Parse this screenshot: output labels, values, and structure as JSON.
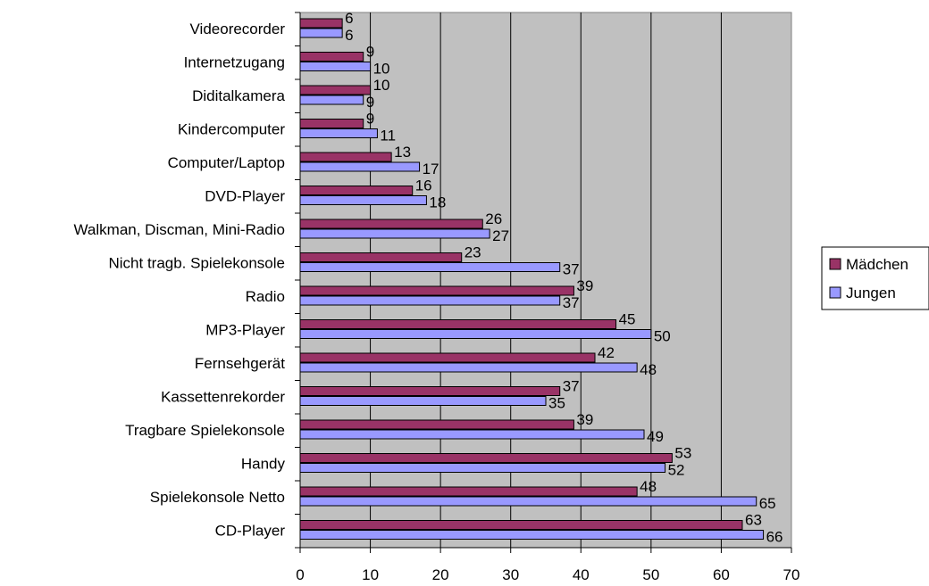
{
  "chart_data": {
    "type": "bar",
    "orientation": "horizontal",
    "categories": [
      "Videorecorder",
      "Internetzugang",
      "Diditalkamera",
      "Kindercomputer",
      "Computer/Laptop",
      "DVD-Player",
      "Walkman, Discman, Mini-Radio",
      "Nicht tragb. Spielekonsole",
      "Radio",
      "MP3-Player",
      "Fernsehgerät",
      "Kassettenrekorder",
      "Tragbare Spielekonsole",
      "Handy",
      "Spielekonsole Netto",
      "CD-Player"
    ],
    "series": [
      {
        "name": "Mädchen",
        "color": "#993366",
        "values": [
          6,
          9,
          10,
          9,
          13,
          16,
          26,
          23,
          39,
          45,
          42,
          37,
          39,
          53,
          48,
          63
        ]
      },
      {
        "name": "Jungen",
        "color": "#9999ff",
        "values": [
          6,
          10,
          9,
          11,
          17,
          18,
          27,
          37,
          37,
          50,
          48,
          35,
          49,
          52,
          65,
          66
        ]
      }
    ],
    "xlim": [
      0,
      70
    ],
    "xticks": [
      "0",
      "10",
      "20",
      "30",
      "40",
      "50",
      "60",
      "70"
    ],
    "plot_background": "#c0c0c0",
    "grid": true,
    "legend": "right"
  }
}
